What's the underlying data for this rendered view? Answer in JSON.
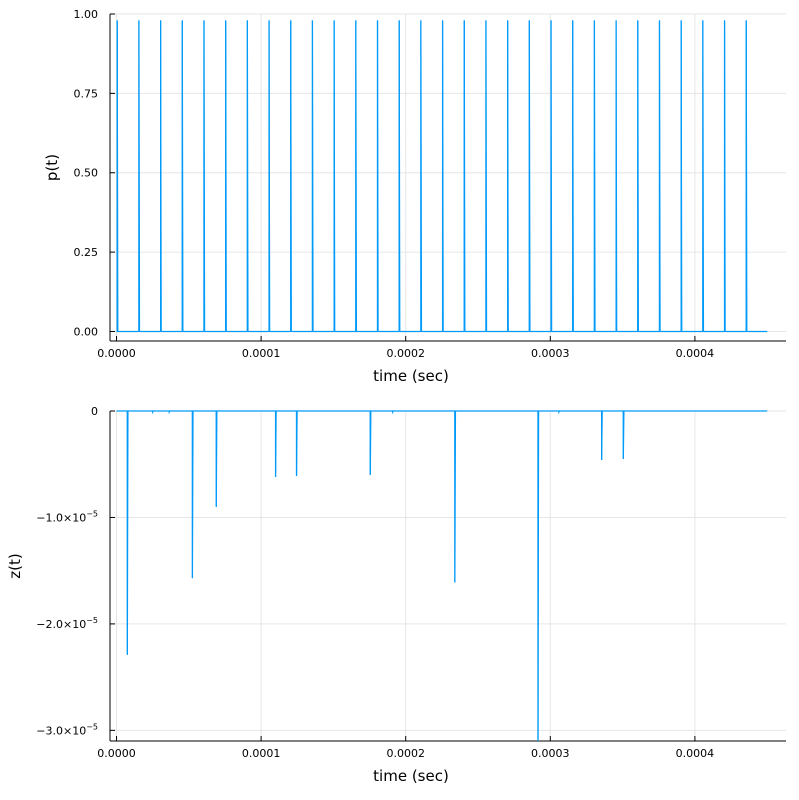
{
  "chart_data": [
    {
      "type": "line",
      "ylabel": "p(t)",
      "xlabel": "time (sec)",
      "xlim": [
        -4.5e-06,
        0.000463
      ],
      "ylim": [
        -0.03,
        1.0
      ],
      "grid": true,
      "legend": "none",
      "color": "#009af9",
      "xticks": [
        0,
        0.0001,
        0.0002,
        0.0003,
        0.0004
      ],
      "xtick_labels": [
        "0.0000",
        "0.0001",
        "0.0002",
        "0.0003",
        "0.0004"
      ],
      "yticks": [
        0,
        0.25,
        0.5,
        0.75,
        1.0
      ],
      "ytick_labels": [
        "0.00",
        "0.25",
        "0.50",
        "0.75",
        "1.00"
      ],
      "baseline": 0.0,
      "x_end": 0.00045,
      "spikes": [
        {
          "x": 5e-07,
          "y": 0.98
        },
        {
          "x": 1.55e-05,
          "y": 0.98
        },
        {
          "x": 3.05e-05,
          "y": 0.98
        },
        {
          "x": 4.55e-05,
          "y": 0.98
        },
        {
          "x": 6.05e-05,
          "y": 0.98
        },
        {
          "x": 7.55e-05,
          "y": 0.98
        },
        {
          "x": 9.05e-05,
          "y": 0.98
        },
        {
          "x": 0.0001055,
          "y": 0.98
        },
        {
          "x": 0.0001205,
          "y": 0.98
        },
        {
          "x": 0.0001355,
          "y": 0.98
        },
        {
          "x": 0.0001505,
          "y": 0.98
        },
        {
          "x": 0.0001655,
          "y": 0.98
        },
        {
          "x": 0.0001805,
          "y": 0.98
        },
        {
          "x": 0.0001955,
          "y": 0.98
        },
        {
          "x": 0.0002105,
          "y": 0.98
        },
        {
          "x": 0.0002255,
          "y": 0.98
        },
        {
          "x": 0.0002405,
          "y": 0.98
        },
        {
          "x": 0.0002555,
          "y": 0.98
        },
        {
          "x": 0.0002705,
          "y": 0.98
        },
        {
          "x": 0.0002855,
          "y": 0.98
        },
        {
          "x": 0.0003005,
          "y": 0.98
        },
        {
          "x": 0.0003155,
          "y": 0.98
        },
        {
          "x": 0.0003305,
          "y": 0.98
        },
        {
          "x": 0.0003455,
          "y": 0.98
        },
        {
          "x": 0.0003605,
          "y": 0.98
        },
        {
          "x": 0.0003755,
          "y": 0.98
        },
        {
          "x": 0.0003905,
          "y": 0.98
        },
        {
          "x": 0.0004055,
          "y": 0.98
        },
        {
          "x": 0.0004205,
          "y": 0.98
        },
        {
          "x": 0.0004355,
          "y": 0.98
        }
      ]
    },
    {
      "type": "line",
      "ylabel": "z(t)",
      "xlabel": "time (sec)",
      "xlim": [
        -4.5e-06,
        0.000463
      ],
      "ylim": [
        -3.1e-05,
        0.0
      ],
      "grid": true,
      "legend": "none",
      "color": "#009af9",
      "xticks": [
        0,
        0.0001,
        0.0002,
        0.0003,
        0.0004
      ],
      "xtick_labels": [
        "0.0000",
        "0.0001",
        "0.0002",
        "0.0003",
        "0.0004"
      ],
      "yticks": [
        0,
        -1e-05,
        -2e-05,
        -3e-05
      ],
      "ytick_labels": [
        {
          "base": "0",
          "exp": ""
        },
        {
          "base": "−1.0×10",
          "exp": "−5"
        },
        {
          "base": "−2.0×10",
          "exp": "−5"
        },
        {
          "base": "−3.0×10",
          "exp": "−5"
        }
      ],
      "baseline": 0.0,
      "x_end": 0.00045,
      "spikes": [
        {
          "x": 7.5e-06,
          "y": -2.29e-05
        },
        {
          "x": 2.5e-05,
          "y": -1e-07
        },
        {
          "x": 3.65e-05,
          "y": -1e-07
        },
        {
          "x": 5.25e-05,
          "y": -1.57e-05
        },
        {
          "x": 6.9e-05,
          "y": -9e-06
        },
        {
          "x": 0.00011,
          "y": -6.2e-06
        },
        {
          "x": 0.0001245,
          "y": -6.1e-06
        },
        {
          "x": 0.0001755,
          "y": -6e-06
        },
        {
          "x": 0.000191,
          "y": -1e-07
        },
        {
          "x": 0.000234,
          "y": -1.61e-05
        },
        {
          "x": 0.0002915,
          "y": -3.1e-05
        },
        {
          "x": 0.000306,
          "y": -1e-07
        },
        {
          "x": 0.0003355,
          "y": -4.6e-06
        },
        {
          "x": 0.0003505,
          "y": -4.5e-06
        }
      ]
    }
  ]
}
